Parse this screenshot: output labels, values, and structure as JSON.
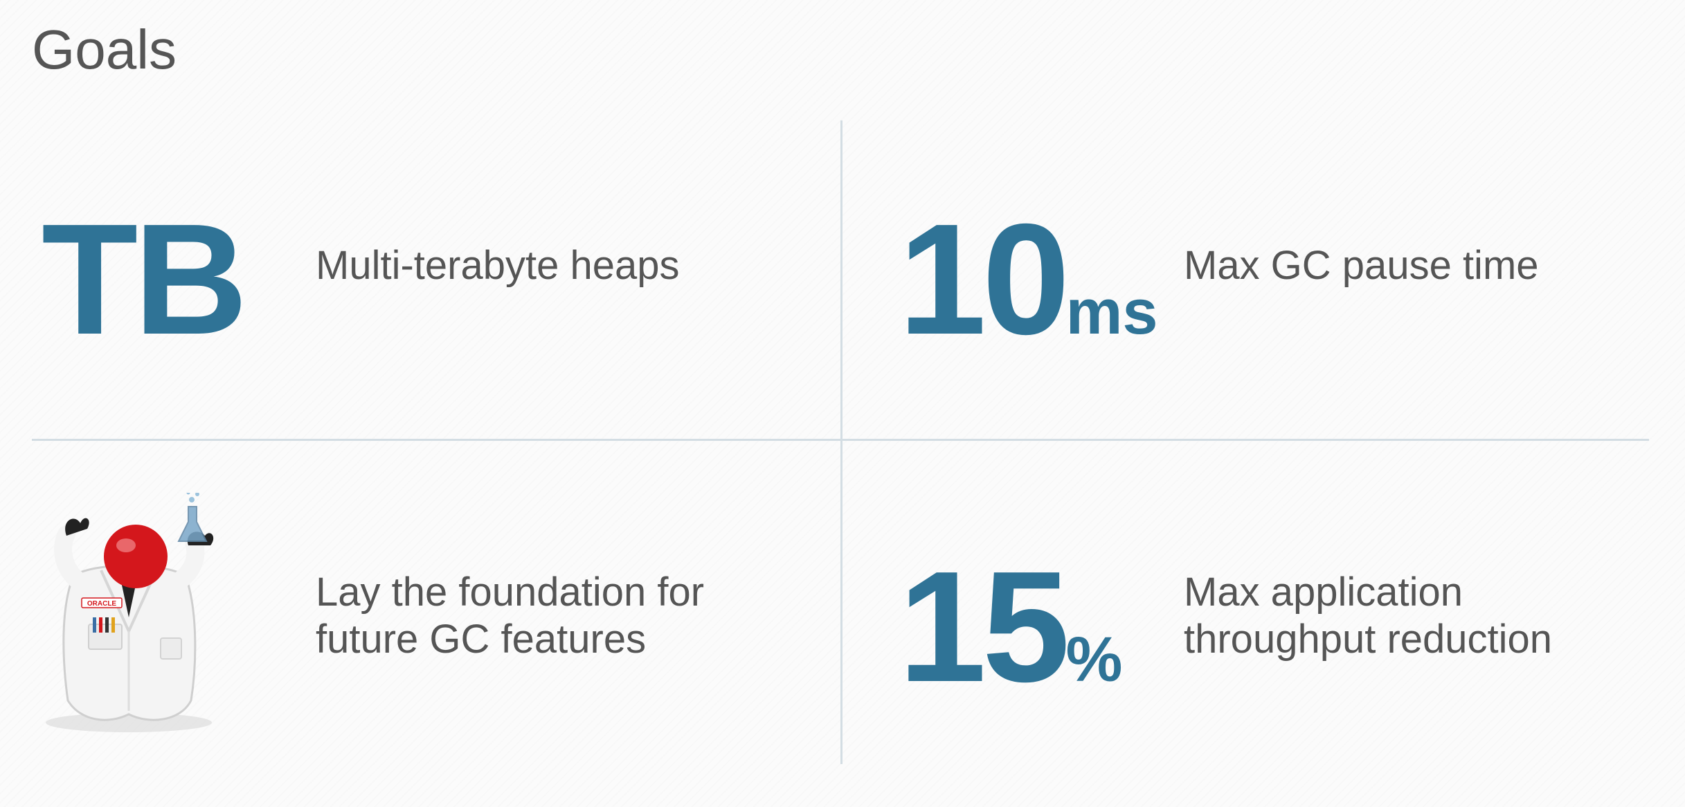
{
  "slide": {
    "title": "Goals"
  },
  "goals": [
    {
      "value": "TB",
      "unit": "",
      "description_lines": [
        "Multi-terabyte heaps"
      ]
    },
    {
      "value": "10",
      "unit": "ms",
      "description_lines": [
        "Max GC pause time"
      ]
    },
    {
      "value": "",
      "unit": "",
      "description_lines": [
        "Lay the foundation for",
        "future GC features"
      ],
      "image": "lab-scientist-mascot"
    },
    {
      "value": "15",
      "unit": "%",
      "description_lines": [
        "Max application",
        "throughput reduction"
      ]
    }
  ],
  "mascot": {
    "badge_text": "ORACLE",
    "colors": {
      "coat": "#f4f4f4",
      "head": "#d4171c",
      "hands": "#222222",
      "flask": "#7aa7c9"
    }
  },
  "colors": {
    "accent": "#2f7396",
    "text": "#555555",
    "divider": "#d3dde3",
    "background": "#fbfbfb"
  }
}
